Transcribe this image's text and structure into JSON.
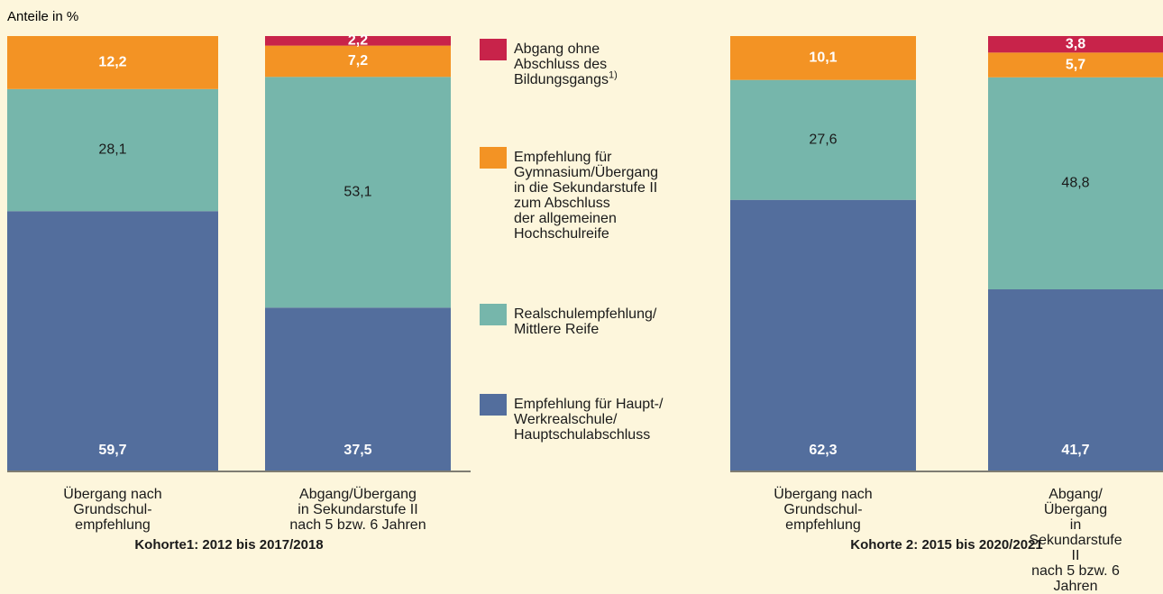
{
  "chart_data": {
    "type": "stacked_bar",
    "y_axis_label": "Anteile in %",
    "categories": [
      "Übergang nach\nGrundschul-\nempfehlung",
      "Abgang/Übergang\nin Sekundarstufe II\nnach 5 bzw. 6 Jahren",
      "Übergang nach\nGrundschul-\nempfehlung",
      "Abgang/Übergang\nin Sekundarstufe II\nnach 5 bzw. 6 Jahren"
    ],
    "groups": [
      {
        "label": "Kohorte1: 2012 bis 2017/2018",
        "categories": [
          0,
          1
        ]
      },
      {
        "label": "Kohorte 2: 2015 bis 2020/2021",
        "categories": [
          2,
          3
        ]
      }
    ],
    "ylim": [
      0,
      100
    ],
    "series": [
      {
        "name": "Empfehlung für Haupt-/\nWerkrealschule/\nHauptschulabschluss",
        "color": "#536e9d",
        "label_color": "#ffffff",
        "label_bold": true,
        "label_position": "bottom",
        "values": [
          59.7,
          37.5,
          62.3,
          41.7
        ],
        "value_labels": [
          "59,7",
          "37,5",
          "62,3",
          "41,7"
        ]
      },
      {
        "name": "Realschulempfehlung/\nMittlere Reife",
        "color": "#76b6ab",
        "label_color": "#1a1a1a",
        "label_bold": false,
        "label_position": "center",
        "values": [
          28.1,
          53.1,
          27.6,
          48.8
        ],
        "value_labels": [
          "28,1",
          "53,1",
          "27,6",
          "48,8"
        ]
      },
      {
        "name": "Empfehlung für\nGymnasium/Übergang\nin die Sekundarstufe II\nzum Abschluss\nder allgemeinen\nHochschulreife",
        "color": "#f39324",
        "label_color": "#ffffff",
        "label_bold": true,
        "label_position": "center",
        "values": [
          12.2,
          7.2,
          10.1,
          5.7
        ],
        "value_labels": [
          "12,2",
          "7,2",
          "10,1",
          "5,7"
        ]
      },
      {
        "name": "Abgang ohne\nAbschluss des\nBildungsgangs",
        "footnote": "1)",
        "color": "#c8234a",
        "label_color": "#ffffff",
        "label_bold": true,
        "label_position": "center",
        "values": [
          null,
          2.2,
          null,
          3.8
        ],
        "value_labels": [
          null,
          "2,2",
          null,
          "3,8"
        ]
      }
    ]
  }
}
